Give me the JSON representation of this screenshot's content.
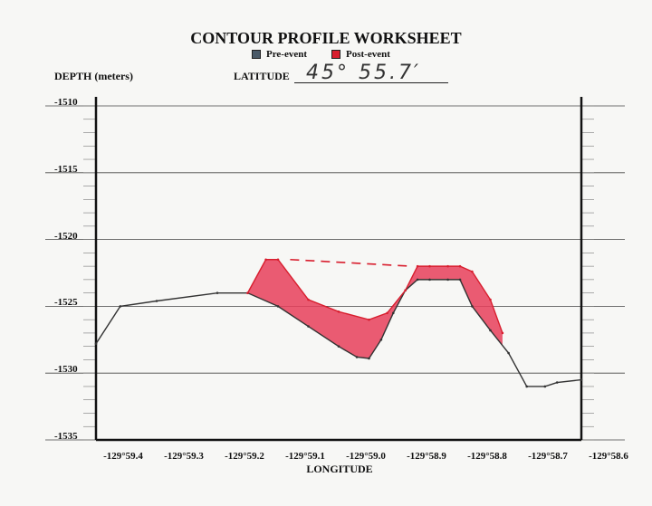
{
  "page": {
    "title": "CONTOUR PROFILE WORKSHEET",
    "legend": [
      {
        "label": "Pre-event",
        "color": "#4a5a68"
      },
      {
        "label": "Post-event",
        "color": "#d81e2e"
      }
    ],
    "depth_label": "DEPTH  (meters)",
    "latitude_label": "LATITUDE",
    "latitude_value": "45° 55.7′"
  },
  "chart_data": {
    "type": "area",
    "title": "CONTOUR PROFILE WORKSHEET",
    "xlabel": "LONGITUDE",
    "ylabel": "DEPTH  (meters)",
    "x_ticks": [
      {
        "value": 59.4,
        "label": "-129°59.4"
      },
      {
        "value": 59.3,
        "label": "-129°59.3"
      },
      {
        "value": 59.2,
        "label": "-129°59.2"
      },
      {
        "value": 59.1,
        "label": "-129°59.1"
      },
      {
        "value": 59.0,
        "label": "-129°59.0"
      },
      {
        "value": 58.9,
        "label": "-129°58.9"
      },
      {
        "value": 58.8,
        "label": "-129°58.8"
      },
      {
        "value": 58.7,
        "label": "-129°58.7"
      },
      {
        "value": 58.6,
        "label": "-129°58.6"
      }
    ],
    "y_ticks": [
      {
        "value": -1510,
        "label": "-1510"
      },
      {
        "value": -1515,
        "label": "-1515"
      },
      {
        "value": -1520,
        "label": "-1520"
      },
      {
        "value": -1525,
        "label": "-1525"
      },
      {
        "value": -1530,
        "label": "-1530"
      },
      {
        "value": -1535,
        "label": "-1535"
      }
    ],
    "xlim": [
      59.4,
      58.6
    ],
    "ylim": [
      -1535,
      -1510
    ],
    "grid": true,
    "legend_position": "top-center",
    "series": [
      {
        "name": "Pre-event",
        "color": "#333333",
        "x": [
          59.4,
          59.36,
          59.3,
          59.2,
          59.15,
          59.1,
          59.05,
          59.0,
          58.97,
          58.95,
          58.93,
          58.91,
          58.89,
          58.87,
          58.85,
          58.82,
          58.8,
          58.78,
          58.75,
          58.72,
          58.69,
          58.66,
          58.64,
          58.6
        ],
        "y": [
          -1527.8,
          -1525.0,
          -1524.6,
          -1524.0,
          -1524.0,
          -1525.0,
          -1526.5,
          -1528.0,
          -1528.8,
          -1528.9,
          -1527.5,
          -1525.5,
          -1523.8,
          -1523.0,
          -1523.0,
          -1523.0,
          -1523.0,
          -1525.0,
          -1526.8,
          -1528.5,
          -1531.0,
          -1531.0,
          -1530.7,
          -1530.5
        ]
      },
      {
        "name": "Post-event",
        "color": "#d81e2e",
        "x": [
          59.15,
          59.12,
          59.1,
          59.05,
          59.0,
          58.95,
          58.92,
          58.89,
          58.87,
          58.85,
          58.82,
          58.8,
          58.78,
          58.75,
          58.73
        ],
        "y": [
          -1524.0,
          -1521.5,
          -1521.5,
          -1524.5,
          -1525.4,
          -1526.0,
          -1525.5,
          -1523.8,
          -1522.0,
          -1522.0,
          -1522.0,
          -1522.0,
          -1522.4,
          -1524.5,
          -1527.0
        ]
      }
    ],
    "annotations": [
      {
        "type": "dashed-line",
        "color": "#d81e2e",
        "x": [
          59.08,
          58.88
        ],
        "y": [
          -1521.5,
          -1522.0
        ]
      }
    ]
  }
}
